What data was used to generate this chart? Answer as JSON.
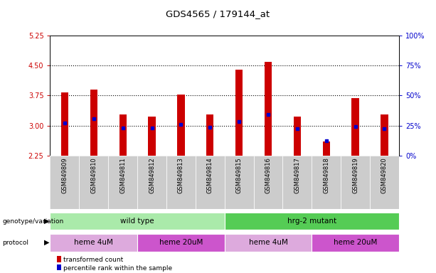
{
  "title": "GDS4565 / 179144_at",
  "samples": [
    "GSM849809",
    "GSM849810",
    "GSM849811",
    "GSM849812",
    "GSM849813",
    "GSM849814",
    "GSM849815",
    "GSM849816",
    "GSM849817",
    "GSM849818",
    "GSM849819",
    "GSM849820"
  ],
  "bar_values": [
    3.82,
    3.9,
    3.27,
    3.22,
    3.78,
    3.27,
    4.4,
    4.6,
    3.23,
    2.6,
    3.68,
    3.27
  ],
  "dot_values": [
    3.07,
    3.17,
    2.94,
    2.94,
    3.03,
    2.95,
    3.1,
    3.28,
    2.93,
    2.62,
    2.98,
    2.93
  ],
  "bar_bottom": 2.25,
  "ylim": [
    2.25,
    5.25
  ],
  "yticks_left": [
    2.25,
    3.0,
    3.75,
    4.5,
    5.25
  ],
  "yticks_right": [
    0,
    25,
    50,
    75,
    100
  ],
  "ytick_labels_right": [
    "0%",
    "25%",
    "50%",
    "75%",
    "100%"
  ],
  "bar_color": "#cc0000",
  "dot_color": "#0000cc",
  "left_tick_color": "#cc0000",
  "right_tick_color": "#0000cc",
  "genotype_groups": [
    {
      "label": "wild type",
      "start": 0,
      "end": 6,
      "color": "#aaeaaa"
    },
    {
      "label": "hrg-2 mutant",
      "start": 6,
      "end": 12,
      "color": "#55cc55"
    }
  ],
  "protocol_groups": [
    {
      "label": "heme 4uM",
      "start": 0,
      "end": 3,
      "color": "#ddaadd"
    },
    {
      "label": "heme 20uM",
      "start": 3,
      "end": 6,
      "color": "#cc55cc"
    },
    {
      "label": "heme 4uM",
      "start": 6,
      "end": 9,
      "color": "#ddaadd"
    },
    {
      "label": "heme 20uM",
      "start": 9,
      "end": 12,
      "color": "#cc55cc"
    }
  ],
  "sample_bg_color": "#cccccc",
  "bar_width": 0.25,
  "legend_items": [
    {
      "color": "#cc0000",
      "label": "transformed count"
    },
    {
      "color": "#0000cc",
      "label": "percentile rank within the sample"
    }
  ]
}
